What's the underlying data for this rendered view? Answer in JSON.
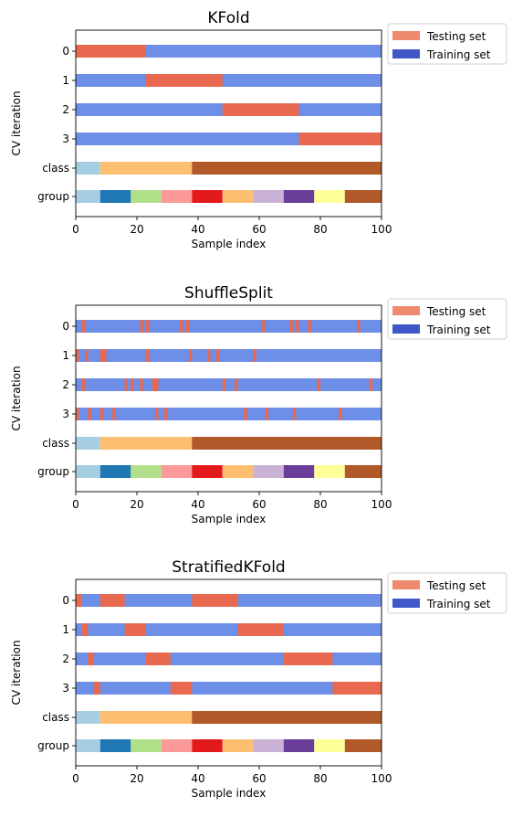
{
  "colors": {
    "testing": "#e8694f",
    "training": "#6d8fe8",
    "legend_testing": "#ef8a6e",
    "legend_training": "#3f57c8",
    "group_palette": [
      "#a6cee3",
      "#1f78b4",
      "#b2df8a",
      "#fb9a99",
      "#e31a1c",
      "#fdbf6f",
      "#cab2d6",
      "#6a3d9a",
      "#ffff99",
      "#b15928"
    ],
    "class_palette": [
      "#a6cee3",
      "#fdbf6f",
      "#b15928"
    ]
  },
  "chart_data": [
    {
      "type": "bar",
      "title": "KFold",
      "xlabel": "Sample index",
      "ylabel": "CV iteration",
      "xlim": [
        0,
        100
      ],
      "xticks": [
        "0",
        "20",
        "40",
        "60",
        "80",
        "100"
      ],
      "yticks": [
        "0",
        "1",
        "2",
        "3",
        "class",
        "group"
      ],
      "legend": {
        "placement": "outside-top-right",
        "entries": [
          "Testing set",
          "Training set"
        ]
      },
      "iterations": [
        {
          "label": "0",
          "test_ranges": [
            [
              0,
              23
            ]
          ]
        },
        {
          "label": "1",
          "test_ranges": [
            [
              23,
              48
            ]
          ]
        },
        {
          "label": "2",
          "test_ranges": [
            [
              48,
              73
            ]
          ]
        },
        {
          "label": "3",
          "test_ranges": [
            [
              73,
              100
            ]
          ]
        }
      ],
      "class_segments": [
        [
          0,
          8,
          0
        ],
        [
          8,
          38,
          1
        ],
        [
          38,
          100,
          2
        ]
      ],
      "group_segments": [
        [
          0,
          8,
          0
        ],
        [
          8,
          18,
          1
        ],
        [
          18,
          28,
          2
        ],
        [
          28,
          38,
          3
        ],
        [
          38,
          48,
          4
        ],
        [
          48,
          58,
          5
        ],
        [
          58,
          68,
          6
        ],
        [
          68,
          78,
          7
        ],
        [
          78,
          88,
          8
        ],
        [
          88,
          100,
          9
        ]
      ]
    },
    {
      "type": "bar",
      "title": "ShuffleSplit",
      "xlabel": "Sample index",
      "ylabel": "CV iteration",
      "xlim": [
        0,
        100
      ],
      "xticks": [
        "0",
        "20",
        "40",
        "60",
        "80",
        "100"
      ],
      "yticks": [
        "0",
        "1",
        "2",
        "3",
        "class",
        "group"
      ],
      "legend": {
        "placement": "outside-top-right",
        "entries": [
          "Testing set",
          "Training set"
        ]
      },
      "iterations": [
        {
          "label": "0",
          "test_ranges": [
            [
              2,
              3
            ],
            [
              21,
              22
            ],
            [
              23,
              24
            ],
            [
              34,
              35
            ],
            [
              36,
              37
            ],
            [
              61,
              62
            ],
            [
              70,
              71
            ],
            [
              72,
              73
            ],
            [
              76,
              77
            ],
            [
              92,
              93
            ]
          ]
        },
        {
          "label": "1",
          "test_ranges": [
            [
              0,
              1
            ],
            [
              3,
              4
            ],
            [
              8,
              9
            ],
            [
              9,
              10
            ],
            [
              23,
              24
            ],
            [
              37,
              38
            ],
            [
              43,
              44
            ],
            [
              46,
              47
            ],
            [
              58,
              59
            ]
          ]
        },
        {
          "label": "2",
          "test_ranges": [
            [
              2,
              3
            ],
            [
              16,
              17
            ],
            [
              18,
              19
            ],
            [
              21,
              22
            ],
            [
              25,
              26
            ],
            [
              26,
              27
            ],
            [
              48,
              49
            ],
            [
              52,
              53
            ],
            [
              79,
              80
            ],
            [
              96,
              97
            ]
          ]
        },
        {
          "label": "3",
          "test_ranges": [
            [
              0,
              1
            ],
            [
              4,
              5
            ],
            [
              8,
              9
            ],
            [
              12,
              13
            ],
            [
              26,
              27
            ],
            [
              29,
              30
            ],
            [
              55,
              56
            ],
            [
              62,
              63
            ],
            [
              71,
              72
            ],
            [
              86,
              87
            ]
          ]
        }
      ],
      "class_segments": [
        [
          0,
          8,
          0
        ],
        [
          8,
          38,
          1
        ],
        [
          38,
          100,
          2
        ]
      ],
      "group_segments": [
        [
          0,
          8,
          0
        ],
        [
          8,
          18,
          1
        ],
        [
          18,
          28,
          2
        ],
        [
          28,
          38,
          3
        ],
        [
          38,
          48,
          4
        ],
        [
          48,
          58,
          5
        ],
        [
          58,
          68,
          6
        ],
        [
          68,
          78,
          7
        ],
        [
          78,
          88,
          8
        ],
        [
          88,
          100,
          9
        ]
      ]
    },
    {
      "type": "bar",
      "title": "StratifiedKFold",
      "xlabel": "Sample index",
      "ylabel": "CV iteration",
      "xlim": [
        0,
        100
      ],
      "xticks": [
        "0",
        "20",
        "40",
        "60",
        "80",
        "100"
      ],
      "yticks": [
        "0",
        "1",
        "2",
        "3",
        "class",
        "group"
      ],
      "legend": {
        "placement": "outside-top-right",
        "entries": [
          "Testing set",
          "Training set"
        ]
      },
      "iterations": [
        {
          "label": "0",
          "test_ranges": [
            [
              0,
              2
            ],
            [
              8,
              16
            ],
            [
              38,
              53
            ]
          ]
        },
        {
          "label": "1",
          "test_ranges": [
            [
              2,
              4
            ],
            [
              16,
              23
            ],
            [
              53,
              68
            ]
          ]
        },
        {
          "label": "2",
          "test_ranges": [
            [
              4,
              6
            ],
            [
              23,
              31
            ],
            [
              68,
              84
            ]
          ]
        },
        {
          "label": "3",
          "test_ranges": [
            [
              6,
              8
            ],
            [
              31,
              38
            ],
            [
              84,
              100
            ]
          ]
        }
      ],
      "class_segments": [
        [
          0,
          8,
          0
        ],
        [
          8,
          38,
          1
        ],
        [
          38,
          100,
          2
        ]
      ],
      "group_segments": [
        [
          0,
          8,
          0
        ],
        [
          8,
          18,
          1
        ],
        [
          18,
          28,
          2
        ],
        [
          28,
          38,
          3
        ],
        [
          38,
          48,
          4
        ],
        [
          48,
          58,
          5
        ],
        [
          58,
          68,
          6
        ],
        [
          68,
          78,
          7
        ],
        [
          78,
          88,
          8
        ],
        [
          88,
          100,
          9
        ]
      ]
    }
  ]
}
